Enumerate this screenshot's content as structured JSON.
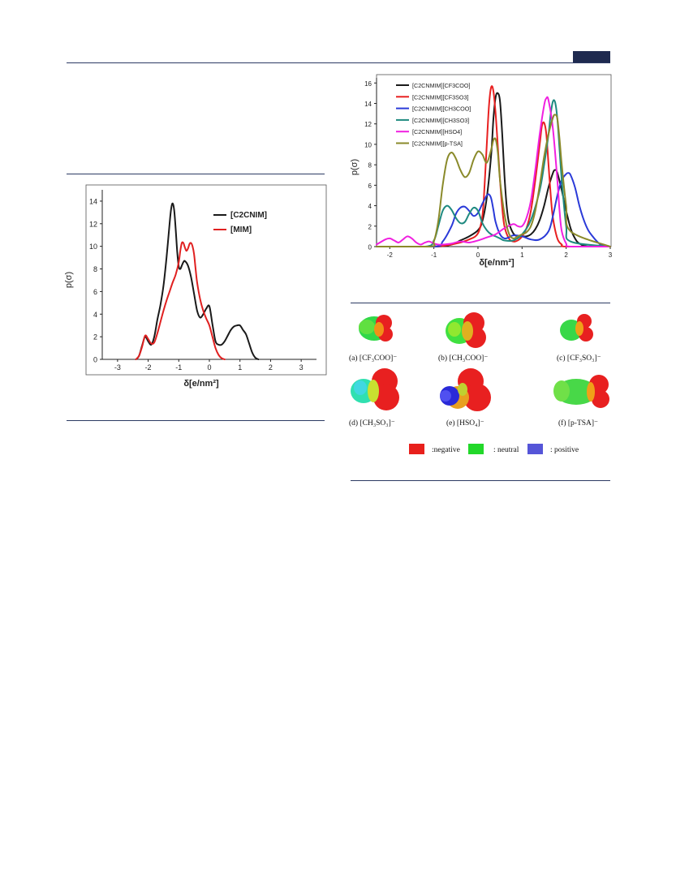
{
  "chart_data": [
    {
      "type": "line",
      "title": "",
      "xlabel": "δ[e/nm²]",
      "ylabel": "p(σ)",
      "xlim": [
        -3.5,
        3.5
      ],
      "ylim": [
        0,
        15
      ],
      "xticks": [
        -3,
        -2,
        -1,
        0,
        1,
        2,
        3
      ],
      "yticks": [
        0,
        2,
        4,
        6,
        8,
        10,
        12,
        14
      ],
      "legend": "top-right",
      "series": [
        {
          "name": "[C2CNIM]",
          "color": "#1a1a1a",
          "x": [
            -2.4,
            -2.3,
            -2.2,
            -2.1,
            -2.0,
            -1.9,
            -1.8,
            -1.7,
            -1.6,
            -1.5,
            -1.4,
            -1.3,
            -1.25,
            -1.2,
            -1.15,
            -1.1,
            -1.05,
            -1.0,
            -0.95,
            -0.9,
            -0.85,
            -0.8,
            -0.7,
            -0.6,
            -0.5,
            -0.4,
            -0.3,
            -0.2,
            -0.1,
            0.0,
            0.1,
            0.2,
            0.3,
            0.4,
            0.5,
            0.6,
            0.7,
            0.8,
            0.9,
            1.0,
            1.1,
            1.2,
            1.3,
            1.4,
            1.5,
            1.6
          ],
          "y": [
            0,
            0.3,
            1.2,
            2.0,
            1.6,
            1.3,
            2.0,
            3.5,
            4.8,
            6.5,
            9.0,
            12.0,
            13.3,
            13.8,
            13.2,
            11.5,
            9.5,
            8.2,
            8.0,
            8.3,
            8.6,
            8.7,
            8.3,
            7.3,
            5.8,
            4.3,
            3.7,
            4.0,
            4.5,
            4.7,
            3.1,
            1.6,
            1.3,
            1.3,
            1.6,
            2.1,
            2.6,
            2.9,
            3.0,
            3.0,
            2.6,
            2.2,
            1.4,
            0.6,
            0.15,
            0
          ]
        },
        {
          "name": "[MIM]",
          "color": "#e02020",
          "x": [
            -2.4,
            -2.3,
            -2.2,
            -2.1,
            -2.0,
            -1.9,
            -1.8,
            -1.7,
            -1.6,
            -1.5,
            -1.4,
            -1.3,
            -1.2,
            -1.1,
            -1.0,
            -0.95,
            -0.9,
            -0.85,
            -0.8,
            -0.75,
            -0.7,
            -0.65,
            -0.6,
            -0.55,
            -0.5,
            -0.45,
            -0.4,
            -0.3,
            -0.2,
            -0.1,
            0.0,
            0.1,
            0.2,
            0.3,
            0.4,
            0.5
          ],
          "y": [
            0,
            0.3,
            1.1,
            2.1,
            1.8,
            1.4,
            1.5,
            2.3,
            3.3,
            4.3,
            5.2,
            6.0,
            6.8,
            7.5,
            8.6,
            9.6,
            10.3,
            10.3,
            9.9,
            9.6,
            9.8,
            10.2,
            10.3,
            10.0,
            9.3,
            8.0,
            6.8,
            5.3,
            4.3,
            3.6,
            3.0,
            2.0,
            1.0,
            0.4,
            0.1,
            0
          ]
        }
      ]
    },
    {
      "type": "line",
      "title": "",
      "xlabel": "δ[e/nm²]",
      "ylabel": "p(σ)",
      "xlim": [
        -2.3,
        3
      ],
      "ylim": [
        0,
        16.5
      ],
      "xticks": [
        -2,
        -1,
        0,
        1,
        2,
        3
      ],
      "yticks": [
        0,
        2,
        4,
        6,
        8,
        10,
        12,
        14,
        16
      ],
      "legend": "top-left",
      "series": [
        {
          "name": "[C2CNMIM][CF3COO]",
          "color": "#1a1a1a",
          "x": [
            -2.3,
            -1.0,
            -0.6,
            -0.4,
            -0.2,
            0.0,
            0.1,
            0.2,
            0.3,
            0.35,
            0.4,
            0.45,
            0.5,
            0.55,
            0.6,
            0.65,
            0.7,
            0.8,
            0.9,
            1.0,
            1.1,
            1.2,
            1.3,
            1.4,
            1.5,
            1.6,
            1.7,
            1.75,
            1.8,
            1.9,
            2.0,
            2.1,
            2.2,
            2.3,
            2.5,
            3.0
          ],
          "y": [
            0,
            0,
            0.2,
            0.6,
            1.0,
            1.6,
            2.5,
            4.8,
            9.0,
            12.5,
            14.6,
            15.0,
            14.2,
            11.0,
            7.0,
            4.0,
            2.4,
            1.3,
            1.0,
            1.0,
            1.0,
            1.2,
            1.7,
            2.6,
            4.0,
            5.8,
            7.2,
            7.5,
            7.2,
            5.5,
            3.5,
            1.8,
            0.8,
            0.3,
            0,
            0
          ]
        },
        {
          "name": "[C2CNMIM][CF3SO3]",
          "color": "#e82020",
          "x": [
            -2.3,
            -1.0,
            -0.5,
            -0.2,
            0.0,
            0.1,
            0.15,
            0.2,
            0.25,
            0.3,
            0.35,
            0.4,
            0.45,
            0.5,
            0.55,
            0.6,
            0.7,
            0.8,
            0.9,
            1.0,
            1.1,
            1.2,
            1.3,
            1.4,
            1.45,
            1.5,
            1.55,
            1.6,
            1.65,
            1.7,
            1.8,
            1.9,
            2.0,
            3.0
          ],
          "y": [
            0,
            0,
            0.3,
            0.7,
            1.3,
            3.0,
            6.0,
            10.0,
            13.8,
            15.6,
            15.2,
            13.0,
            9.8,
            6.5,
            3.8,
            2.0,
            0.8,
            0.5,
            0.6,
            1.0,
            1.8,
            3.5,
            6.5,
            10.0,
            11.8,
            12.1,
            11.0,
            8.0,
            5.0,
            2.8,
            0.8,
            0.2,
            0,
            0
          ]
        },
        {
          "name": "[C2CNMIM][CH3COO]",
          "color": "#2a3ad8",
          "x": [
            -2.3,
            -1.0,
            -0.8,
            -0.6,
            -0.5,
            -0.4,
            -0.3,
            -0.2,
            -0.1,
            0.0,
            0.1,
            0.2,
            0.25,
            0.3,
            0.35,
            0.4,
            0.5,
            0.6,
            0.7,
            0.8,
            1.0,
            1.2,
            1.4,
            1.6,
            1.7,
            1.8,
            1.9,
            2.0,
            2.05,
            2.1,
            2.2,
            2.3,
            2.4,
            2.5,
            2.6,
            2.7,
            2.8,
            3.0
          ],
          "y": [
            0,
            0,
            0.5,
            2.0,
            3.2,
            3.8,
            3.9,
            3.5,
            3.0,
            3.3,
            4.2,
            5.0,
            5.1,
            4.7,
            3.6,
            2.4,
            1.2,
            0.8,
            0.9,
            1.1,
            1.0,
            0.7,
            0.7,
            1.5,
            3.0,
            5.0,
            6.5,
            7.1,
            7.2,
            7.0,
            5.8,
            4.0,
            2.6,
            1.6,
            1.0,
            0.5,
            0.15,
            0
          ]
        },
        {
          "name": "[C2CNMIM][CH3SO3]",
          "color": "#1f8a80",
          "x": [
            -2.3,
            -1.2,
            -1.0,
            -0.9,
            -0.8,
            -0.7,
            -0.6,
            -0.5,
            -0.4,
            -0.3,
            -0.2,
            -0.1,
            0.0,
            0.1,
            0.2,
            0.3,
            0.4,
            0.5,
            0.6,
            0.8,
            1.0,
            1.2,
            1.4,
            1.5,
            1.6,
            1.65,
            1.7,
            1.75,
            1.8,
            1.85,
            1.9,
            2.0,
            2.1,
            3.0
          ],
          "y": [
            0,
            0,
            0.6,
            2.0,
            3.5,
            4.0,
            3.6,
            2.8,
            2.3,
            2.4,
            3.2,
            3.8,
            3.5,
            2.3,
            1.6,
            1.2,
            1.0,
            0.8,
            0.6,
            0.6,
            1.2,
            2.6,
            5.5,
            8.0,
            11.0,
            13.0,
            14.2,
            14.1,
            12.5,
            9.5,
            6.5,
            2.0,
            0.5,
            0
          ]
        },
        {
          "name": "[C2CNMIM][HSO4]",
          "color": "#f020e0",
          "x": [
            -2.3,
            -2.1,
            -2.0,
            -1.9,
            -1.8,
            -1.7,
            -1.6,
            -1.5,
            -1.4,
            -1.3,
            -1.2,
            -1.1,
            -1.0,
            -0.9,
            -0.8,
            -0.6,
            -0.4,
            -0.2,
            0.0,
            0.2,
            0.4,
            0.6,
            0.8,
            0.9,
            1.0,
            1.1,
            1.2,
            1.3,
            1.4,
            1.5,
            1.55,
            1.6,
            1.7,
            1.8,
            1.85,
            1.9,
            2.0,
            2.1,
            3.0
          ],
          "y": [
            0.2,
            0.7,
            0.8,
            0.6,
            0.4,
            0.7,
            1.0,
            0.8,
            0.4,
            0.2,
            0.4,
            0.5,
            0.3,
            0.2,
            0.2,
            0.3,
            0.5,
            0.4,
            0.6,
            0.9,
            1.2,
            1.8,
            2.2,
            2.0,
            2.0,
            2.8,
            4.5,
            7.5,
            11.0,
            13.8,
            14.5,
            14.3,
            11.5,
            6.5,
            3.5,
            1.5,
            0.3,
            0,
            0
          ]
        },
        {
          "name": "[C2CNMIM][p-TSA]",
          "color": "#8a8a2a",
          "x": [
            -2.3,
            -1.1,
            -1.0,
            -0.9,
            -0.8,
            -0.7,
            -0.6,
            -0.5,
            -0.4,
            -0.3,
            -0.2,
            -0.1,
            0.0,
            0.1,
            0.2,
            0.3,
            0.35,
            0.4,
            0.45,
            0.5,
            0.6,
            0.7,
            0.8,
            0.9,
            1.0,
            1.1,
            1.2,
            1.3,
            1.4,
            1.5,
            1.6,
            1.7,
            1.75,
            1.8,
            1.85,
            1.9,
            2.0,
            2.1,
            3.0
          ],
          "y": [
            0,
            0,
            0.5,
            2.5,
            6.0,
            8.5,
            9.2,
            8.6,
            7.5,
            6.8,
            7.2,
            8.5,
            9.3,
            9.0,
            8.2,
            9.5,
            10.4,
            10.5,
            9.2,
            6.5,
            3.2,
            1.3,
            0.8,
            1.0,
            1.2,
            1.4,
            2.0,
            3.5,
            6.0,
            8.8,
            11.0,
            12.6,
            12.9,
            12.5,
            10.5,
            8.0,
            4.0,
            1.5,
            0
          ]
        }
      ]
    }
  ],
  "figure": {
    "molecules": [
      {
        "label": "(a) [CF₃COO]⁻"
      },
      {
        "label": "(b) [CH₃COO]⁻"
      },
      {
        "label": "(c) [CF₃SO₃]⁻"
      },
      {
        "label": "(d) [CH₃SO₃]⁻"
      },
      {
        "label": "(e) [HSO₄]⁻"
      },
      {
        "label": "(f) [p-TSA]⁻"
      }
    ],
    "legend": [
      {
        "label": ":negative",
        "color": "#e8201c"
      },
      {
        "label": ": neutral",
        "color": "#22d82a"
      },
      {
        "label": ": positive",
        "color": "#5555d8"
      }
    ]
  }
}
